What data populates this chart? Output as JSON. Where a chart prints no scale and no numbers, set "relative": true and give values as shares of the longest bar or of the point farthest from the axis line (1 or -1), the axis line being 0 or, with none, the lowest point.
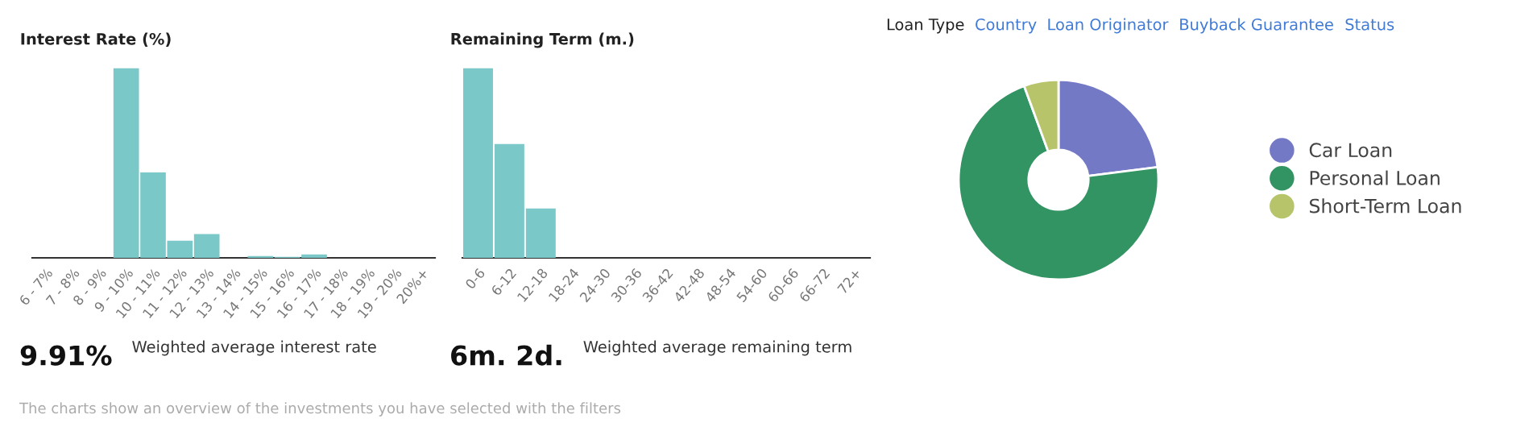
{
  "chart_data": [
    {
      "type": "bar",
      "title": "Interest Rate (%)",
      "relative": true,
      "color": "#7ac8c8",
      "categories": [
        "6 - 7%",
        "7 - 8%",
        "8 - 9%",
        "9 - 10%",
        "10 - 11%",
        "11 - 12%",
        "12 - 13%",
        "13 - 14%",
        "14 - 15%",
        "15 - 16%",
        "16 - 17%",
        "17 - 18%",
        "18 - 19%",
        "19 - 20%",
        "20%+"
      ],
      "values": [
        0,
        0,
        0,
        1,
        0.45,
        0.09,
        0.125,
        0,
        0.01,
        0.005,
        0.018,
        0,
        0,
        0,
        0
      ],
      "annotations": [
        "9.91%",
        "Weighted average interest rate",
        "The charts show an overview of the investments you have selected with the filters"
      ]
    },
    {
      "type": "bar",
      "title": "Remaining Term (m.)",
      "relative": true,
      "color": "#7ac8c8",
      "categories": [
        "0-6",
        "6-12",
        "12-18",
        "18-24",
        "24-30",
        "30-36",
        "36-42",
        "42-48",
        "48-54",
        "54-60",
        "60-66",
        "66-72",
        "72+"
      ],
      "values": [
        1,
        0.6,
        0.26,
        0,
        0,
        0,
        0,
        0,
        0,
        0,
        0,
        0,
        0
      ],
      "annotations": [
        "6m. 2d.",
        "Weighted average remaining term"
      ]
    },
    {
      "type": "donut",
      "title": "Loan Type",
      "legend": "right",
      "categories": [
        "Car Loan",
        "Personal Loan",
        "Short-Term Loan"
      ],
      "values": [
        23,
        71.4,
        5.6
      ],
      "colors": [
        "#7479c6",
        "#339463",
        "#b8c46a"
      ],
      "annotations": [
        "Country",
        "Loan Originator",
        "Buyback Guarantee",
        "Status"
      ]
    }
  ]
}
